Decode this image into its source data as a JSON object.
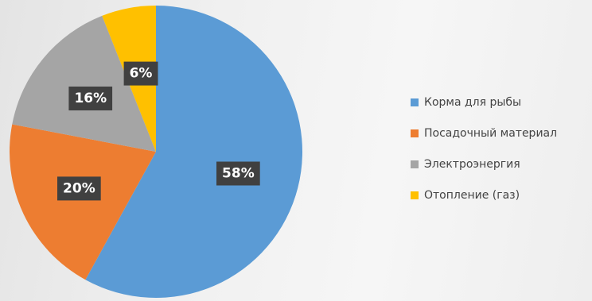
{
  "chart_data": {
    "type": "pie",
    "start_angle_deg": 0,
    "direction": "clockwise",
    "slices": [
      {
        "label": "Корма для рыбы",
        "value": 58,
        "value_label": "58%",
        "color": "#5b9bd5"
      },
      {
        "label": "Посадочный материал",
        "value": 20,
        "value_label": "20%",
        "color": "#ed7d31"
      },
      {
        "label": "Электроэнергия",
        "value": 16,
        "value_label": "16%",
        "color": "#a5a5a5"
      },
      {
        "label": "Отопление (газ)",
        "value": 6,
        "value_label": "6%",
        "color": "#ffc000"
      }
    ],
    "data_label_style": {
      "background": "#404040",
      "text_color": "#ffffff"
    },
    "legend": {
      "placement": "right"
    }
  }
}
